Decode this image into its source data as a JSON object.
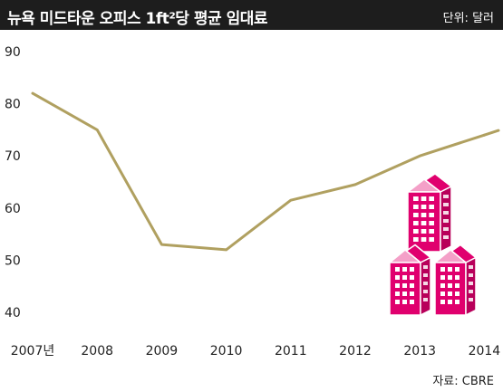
{
  "header": {
    "title": "뉴욕 미드타운 오피스 1ft²당 평균 임대료",
    "unit": "단위: 달러"
  },
  "source": "자료: CBRE",
  "colors": {
    "line": "#b0a060",
    "accent": "#e0006e",
    "header_bg": "#1d1d1d"
  },
  "illustration": {
    "icon": "office-buildings-icon"
  },
  "chart_data": {
    "type": "line",
    "title": "뉴욕 미드타운 오피스 1ft²당 평균 임대료",
    "xlabel": "",
    "ylabel": "",
    "categories": [
      "2007년",
      "2008",
      "2009",
      "2010",
      "2011",
      "2012",
      "2013",
      "2014"
    ],
    "values": [
      82,
      75,
      53,
      52,
      61.5,
      64.5,
      70,
      74
    ],
    "yticks": [
      40,
      50,
      60,
      70,
      80,
      90
    ],
    "ylim": [
      40,
      90
    ],
    "grid": false,
    "legend": "none"
  }
}
